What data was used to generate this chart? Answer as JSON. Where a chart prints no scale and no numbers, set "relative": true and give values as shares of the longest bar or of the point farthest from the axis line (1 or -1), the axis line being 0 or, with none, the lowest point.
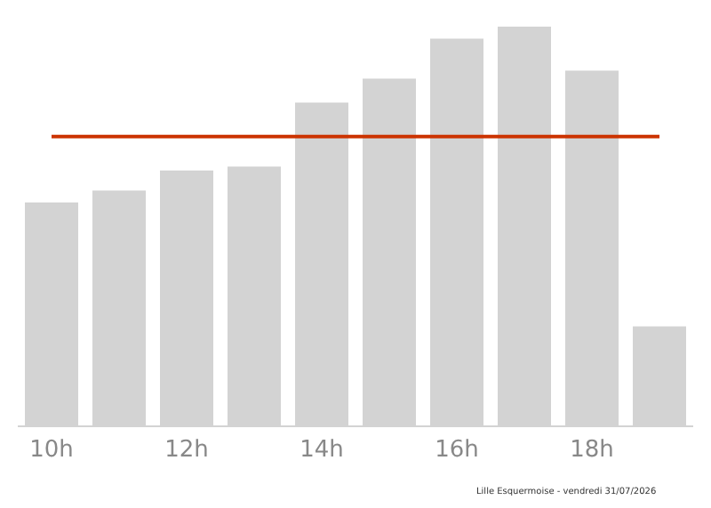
{
  "chart_data": {
    "type": "bar",
    "relative": true,
    "categories": [
      "10h",
      null,
      "12h",
      null,
      "14h",
      null,
      "16h",
      null,
      "18h",
      null
    ],
    "values": [
      0.56,
      0.59,
      0.64,
      0.65,
      0.81,
      0.87,
      0.97,
      1,
      0.89,
      0.25
    ],
    "color": "#d3d3d3",
    "ref_lines": [
      {
        "axis": "y",
        "value": 0.725,
        "color": "#cc3300"
      }
    ],
    "annotations": [
      "Lille Esquermoise - vendredi 31/07/2026"
    ],
    "grid": false,
    "legend": false
  }
}
